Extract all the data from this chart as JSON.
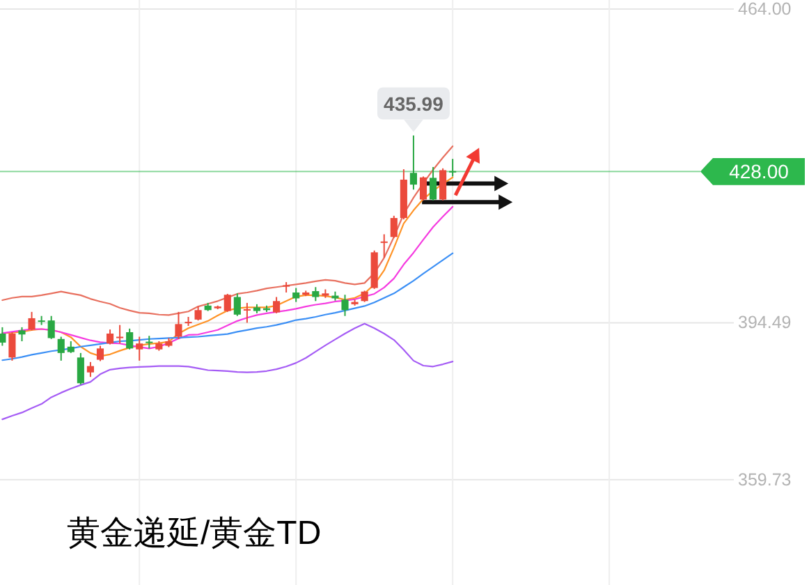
{
  "chart_data": {
    "type": "candlestick",
    "title": "黄金递延/黄金TD",
    "categories": [
      null,
      null,
      null,
      null,
      null,
      null,
      null,
      null,
      null,
      null,
      null,
      null,
      null,
      null,
      null,
      null,
      null,
      null,
      null,
      null,
      null,
      null,
      null,
      null,
      null,
      null,
      null,
      null,
      null,
      null,
      null,
      null,
      null,
      null,
      null,
      null,
      null,
      null,
      null,
      null,
      null,
      null,
      null,
      null,
      null,
      null,
      null
    ],
    "ohlc": [
      [
        392.1,
        393.5,
        389.4,
        390.1
      ],
      [
        386.8,
        392.4,
        386.1,
        392.1
      ],
      [
        392.8,
        393.5,
        390.4,
        391.9
      ],
      [
        393.0,
        396.9,
        392.8,
        395.5
      ],
      [
        395.0,
        396.0,
        394.0,
        394.7
      ],
      [
        395.0,
        396.0,
        390.9,
        391.1
      ],
      [
        390.9,
        391.4,
        386.1,
        387.8
      ],
      [
        389.2,
        390.4,
        387.8,
        388.0
      ],
      [
        386.8,
        387.8,
        380.8,
        381.1
      ],
      [
        383.5,
        385.8,
        382.5,
        384.9
      ],
      [
        386.3,
        389.4,
        386.0,
        388.8
      ],
      [
        389.9,
        393.0,
        389.7,
        392.1
      ],
      [
        391.1,
        394.0,
        389.9,
        391.4
      ],
      [
        392.4,
        393.2,
        388.6,
        388.8
      ],
      [
        388.6,
        391.4,
        386.1,
        389.9
      ],
      [
        390.3,
        391.6,
        388.8,
        390.0
      ],
      [
        388.6,
        390.4,
        388.3,
        389.9
      ],
      [
        389.4,
        391.1,
        389.1,
        390.4
      ],
      [
        391.4,
        396.9,
        390.9,
        394.2
      ],
      [
        394.4,
        395.8,
        393.8,
        394.7
      ],
      [
        395.2,
        398.1,
        395.0,
        397.3
      ],
      [
        398.3,
        398.9,
        397.1,
        397.3
      ],
      [
        397.7,
        398.3,
        397.5,
        398.1
      ],
      [
        397.1,
        400.9,
        396.9,
        400.7
      ],
      [
        400.2,
        401.0,
        396.0,
        396.3
      ],
      [
        397.3,
        398.9,
        394.5,
        397.5
      ],
      [
        397.9,
        398.6,
        396.6,
        397.1
      ],
      [
        397.7,
        398.3,
        396.9,
        397.3
      ],
      [
        396.8,
        400.2,
        396.6,
        399.3
      ],
      [
        402.6,
        403.5,
        401.2,
        402.8
      ],
      [
        401.2,
        402.2,
        399.1,
        399.9
      ],
      [
        400.7,
        401.6,
        400.4,
        401.2
      ],
      [
        401.5,
        402.4,
        399.3,
        400.2
      ],
      [
        400.5,
        401.9,
        400.0,
        401.0
      ],
      [
        400.5,
        401.4,
        399.4,
        399.9
      ],
      [
        399.6,
        400.7,
        396.0,
        397.3
      ],
      [
        398.6,
        399.6,
        398.3,
        399.1
      ],
      [
        399.3,
        401.6,
        399.1,
        401.4
      ],
      [
        402.2,
        410.5,
        402.0,
        410.1
      ],
      [
        412.2,
        414.1,
        408.9,
        412.5
      ],
      [
        413.5,
        418.2,
        413.3,
        417.7
      ],
      [
        417.7,
        428.5,
        417.4,
        426.2
      ],
      [
        427.7,
        435.99,
        424.0,
        425.1
      ],
      [
        421.8,
        426.9,
        421.6,
        426.7
      ],
      [
        426.6,
        429.0,
        421.6,
        421.8
      ],
      [
        421.8,
        428.7,
        421.6,
        428.3
      ],
      [
        428.1,
        430.8,
        426.9,
        428.0
      ]
    ],
    "colors": [
      "#29a843",
      "#eb4a3c",
      "#29a843",
      "#eb4a3c",
      "#29a843",
      "#29a843",
      "#29a843",
      "#29a843",
      "#29a843",
      "#eb4a3c",
      "#eb4a3c",
      "#eb4a3c",
      "#eb4a3c",
      "#29a843",
      "#eb4a3c",
      "#29a843",
      "#eb4a3c",
      "#eb4a3c",
      "#eb4a3c",
      "#eb4a3c",
      "#eb4a3c",
      "#29a843",
      "#eb4a3c",
      "#eb4a3c",
      "#29a843",
      "#eb4a3c",
      "#29a843",
      "#29a843",
      "#eb4a3c",
      "#eb4a3c",
      "#29a843",
      "#eb4a3c",
      "#29a843",
      "#eb4a3c",
      "#29a843",
      "#29a843",
      "#eb4a3c",
      "#eb4a3c",
      "#eb4a3c",
      "#eb4a3c",
      "#eb4a3c",
      "#eb4a3c",
      "#29a843",
      "#eb4a3c",
      "#29a843",
      "#eb4a3c",
      "#29a843"
    ],
    "series": [
      {
        "type": "line",
        "color": "#e8705f",
        "values": [
          399.5,
          400.0,
          400.3,
          400.3,
          400.6,
          401.0,
          401.4,
          401.0,
          400.6,
          399.8,
          399.2,
          398.7,
          397.8,
          397.2,
          396.7,
          396.6,
          396.3,
          396.2,
          396.6,
          397.0,
          398.1,
          398.7,
          399.3,
          400.1,
          400.9,
          401.2,
          401.6,
          402.1,
          402.4,
          402.7,
          403.0,
          403.3,
          403.7,
          404.0,
          403.8,
          403.3,
          403.0,
          403.3,
          405.5,
          408.9,
          413.5,
          418.6,
          422.2,
          425.4,
          428.4,
          431.1,
          433.6
        ]
      },
      {
        "type": "line",
        "color": "#ff9326",
        "values": [
          392.2,
          392.3,
          392.5,
          392.9,
          393.1,
          392.9,
          392.4,
          391.3,
          389.2,
          387.8,
          387.1,
          387.5,
          388.3,
          389.0,
          389.5,
          389.8,
          390.0,
          390.3,
          392.1,
          393.3,
          394.1,
          394.9,
          396.1,
          397.2,
          397.7,
          397.9,
          397.9,
          397.9,
          398.3,
          399.3,
          400.3,
          400.6,
          400.6,
          400.4,
          400.1,
          399.6,
          400.0,
          401.0,
          403.0,
          406.1,
          411.1,
          416.5,
          419.4,
          421.9,
          423.7,
          425.3,
          426.7
        ]
      },
      {
        "type": "line",
        "color": "#f53be0",
        "values": [
          392.2,
          392.5,
          392.8,
          393.1,
          393.1,
          392.9,
          392.4,
          391.8,
          391.2,
          390.6,
          390.2,
          390.0,
          389.9,
          389.5,
          389.1,
          388.8,
          389.2,
          390.0,
          391.0,
          391.8,
          391.9,
          392.4,
          392.9,
          393.9,
          394.9,
          395.6,
          396.2,
          396.6,
          396.9,
          397.2,
          397.6,
          398.1,
          398.5,
          398.8,
          399.2,
          399.4,
          399.7,
          400.3,
          400.9,
          402.3,
          404.3,
          407.4,
          410.0,
          412.9,
          415.7,
          418.0,
          420.2
        ]
      },
      {
        "type": "line",
        "color": "#3b8ff5",
        "values": [
          386.2,
          386.5,
          386.9,
          387.4,
          387.8,
          388.2,
          388.5,
          388.8,
          389.2,
          389.5,
          389.8,
          390.1,
          390.4,
          390.5,
          390.7,
          390.9,
          391.0,
          391.1,
          391.2,
          391.3,
          391.4,
          391.6,
          391.8,
          392.0,
          392.5,
          392.9,
          393.3,
          393.6,
          394.0,
          394.5,
          395.1,
          395.4,
          395.8,
          396.3,
          396.7,
          397.2,
          397.7,
          398.2,
          399.0,
          400.0,
          401.0,
          402.4,
          403.8,
          405.4,
          406.9,
          408.4,
          409.9
        ]
      },
      {
        "type": "line",
        "color": "#a55cf5",
        "values": [
          373.1,
          373.9,
          374.6,
          375.6,
          376.5,
          378.0,
          379.0,
          379.9,
          380.7,
          381.4,
          383.1,
          384.1,
          384.4,
          384.6,
          384.7,
          384.8,
          384.9,
          384.9,
          384.9,
          384.8,
          384.4,
          384.0,
          383.9,
          383.8,
          383.6,
          383.5,
          383.6,
          383.8,
          384.2,
          384.8,
          385.6,
          386.7,
          388.1,
          389.5,
          390.8,
          392.1,
          393.3,
          394.3,
          393.3,
          392.1,
          390.7,
          388.5,
          386.1,
          385.0,
          384.8,
          385.3,
          385.9
        ]
      }
    ],
    "ylim": [
      336.4,
      466.0
    ],
    "yticks": [
      {
        "value": 464,
        "label": "464.00"
      },
      394.49,
      359.73
    ],
    "grid": true,
    "tick_labels": "y",
    "ref_lines": [
      {
        "axis": "y",
        "value": 428.0,
        "label": "428.00",
        "color": "#2db84d"
      }
    ],
    "annotations": [
      {
        "text": "435.99",
        "y": 435.99
      }
    ]
  }
}
